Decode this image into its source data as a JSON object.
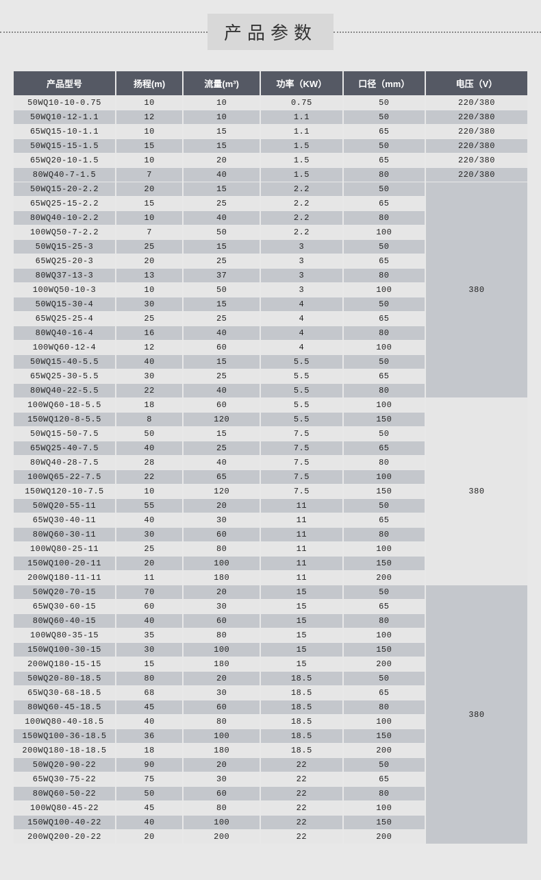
{
  "title": "产品参数",
  "columns": [
    "产品型号",
    "扬程(m)",
    "流量(m³)",
    "功率（KW）",
    "口径（mm）",
    "电压（V）"
  ],
  "colors": {
    "header_bg": "#555964",
    "header_fg": "#ffffff",
    "row_light": "#e6e6e6",
    "row_dark": "#c4c7cc",
    "page_bg": "#e8e8e8",
    "title_bg": "#d8d8d8"
  },
  "groups": [
    {
      "voltage": "220/380",
      "voltage_mode": "per_row",
      "start_shade": "light",
      "rows": [
        [
          "50WQ10-10-0.75",
          "10",
          "10",
          "0.75",
          "50"
        ],
        [
          "50WQ10-12-1.1",
          "12",
          "10",
          "1.1",
          "50"
        ],
        [
          "65WQ15-10-1.1",
          "10",
          "15",
          "1.1",
          "65"
        ],
        [
          "50WQ15-15-1.5",
          "15",
          "15",
          "1.5",
          "50"
        ],
        [
          "65WQ20-10-1.5",
          "10",
          "20",
          "1.5",
          "65"
        ],
        [
          "80WQ40-7-1.5",
          "7",
          "40",
          "1.5",
          "80"
        ]
      ]
    },
    {
      "voltage": "380",
      "voltage_mode": "merged",
      "voltage_bg": "dark",
      "start_shade": "dark",
      "rows": [
        [
          "50WQ15-20-2.2",
          "20",
          "15",
          "2.2",
          "50"
        ],
        [
          "65WQ25-15-2.2",
          "15",
          "25",
          "2.2",
          "65"
        ],
        [
          "80WQ40-10-2.2",
          "10",
          "40",
          "2.2",
          "80"
        ],
        [
          "100WQ50-7-2.2",
          "7",
          "50",
          "2.2",
          "100"
        ],
        [
          "50WQ15-25-3",
          "25",
          "15",
          "3",
          "50"
        ],
        [
          "65WQ25-20-3",
          "20",
          "25",
          "3",
          "65"
        ],
        [
          "80WQ37-13-3",
          "13",
          "37",
          "3",
          "80"
        ],
        [
          "100WQ50-10-3",
          "10",
          "50",
          "3",
          "100"
        ],
        [
          "50WQ15-30-4",
          "30",
          "15",
          "4",
          "50"
        ],
        [
          "65WQ25-25-4",
          "25",
          "25",
          "4",
          "65"
        ],
        [
          "80WQ40-16-4",
          "16",
          "40",
          "4",
          "80"
        ],
        [
          "100WQ60-12-4",
          "12",
          "60",
          "4",
          "100"
        ],
        [
          "50WQ15-40-5.5",
          "40",
          "15",
          "5.5",
          "50"
        ],
        [
          "65WQ25-30-5.5",
          "30",
          "25",
          "5.5",
          "65"
        ],
        [
          "80WQ40-22-5.5",
          "22",
          "40",
          "5.5",
          "80"
        ]
      ]
    },
    {
      "voltage": "380",
      "voltage_mode": "merged",
      "voltage_bg": "light",
      "start_shade": "light",
      "rows": [
        [
          "100WQ60-18-5.5",
          "18",
          "60",
          "5.5",
          "100"
        ],
        [
          "150WQ120-8-5.5",
          "8",
          "120",
          "5.5",
          "150"
        ],
        [
          "50WQ15-50-7.5",
          "50",
          "15",
          "7.5",
          "50"
        ],
        [
          "65WQ25-40-7.5",
          "40",
          "25",
          "7.5",
          "65"
        ],
        [
          "80WQ40-28-7.5",
          "28",
          "40",
          "7.5",
          "80"
        ],
        [
          "100WQ65-22-7.5",
          "22",
          "65",
          "7.5",
          "100"
        ],
        [
          "150WQ120-10-7.5",
          "10",
          "120",
          "7.5",
          "150"
        ],
        [
          "50WQ20-55-11",
          "55",
          "20",
          "11",
          "50"
        ],
        [
          "65WQ30-40-11",
          "40",
          "30",
          "11",
          "65"
        ],
        [
          "80WQ60-30-11",
          "30",
          "60",
          "11",
          "80"
        ],
        [
          "100WQ80-25-11",
          "25",
          "80",
          "11",
          "100"
        ],
        [
          "150WQ100-20-11",
          "20",
          "100",
          "11",
          "150"
        ],
        [
          "200WQ180-11-11",
          "11",
          "180",
          "11",
          "200"
        ]
      ]
    },
    {
      "voltage": "380",
      "voltage_mode": "merged",
      "voltage_bg": "dark",
      "start_shade": "dark",
      "rows": [
        [
          "50WQ20-70-15",
          "70",
          "20",
          "15",
          "50"
        ],
        [
          "65WQ30-60-15",
          "60",
          "30",
          "15",
          "65"
        ],
        [
          "80WQ60-40-15",
          "40",
          "60",
          "15",
          "80"
        ],
        [
          "100WQ80-35-15",
          "35",
          "80",
          "15",
          "100"
        ],
        [
          "150WQ100-30-15",
          "30",
          "100",
          "15",
          "150"
        ],
        [
          "200WQ180-15-15",
          "15",
          "180",
          "15",
          "200"
        ],
        [
          "50WQ20-80-18.5",
          "80",
          "20",
          "18.5",
          "50"
        ],
        [
          "65WQ30-68-18.5",
          "68",
          "30",
          "18.5",
          "65"
        ],
        [
          "80WQ60-45-18.5",
          "45",
          "60",
          "18.5",
          "80"
        ],
        [
          "100WQ80-40-18.5",
          "40",
          "80",
          "18.5",
          "100"
        ],
        [
          "150WQ100-36-18.5",
          "36",
          "100",
          "18.5",
          "150"
        ],
        [
          "200WQ180-18-18.5",
          "18",
          "180",
          "18.5",
          "200"
        ],
        [
          "50WQ20-90-22",
          "90",
          "20",
          "22",
          "50"
        ],
        [
          "65WQ30-75-22",
          "75",
          "30",
          "22",
          "65"
        ],
        [
          "80WQ60-50-22",
          "50",
          "60",
          "22",
          "80"
        ],
        [
          "100WQ80-45-22",
          "45",
          "80",
          "22",
          "100"
        ],
        [
          "150WQ100-40-22",
          "40",
          "100",
          "22",
          "150"
        ],
        [
          "200WQ200-20-22",
          "20",
          "200",
          "22",
          "200"
        ]
      ]
    }
  ]
}
